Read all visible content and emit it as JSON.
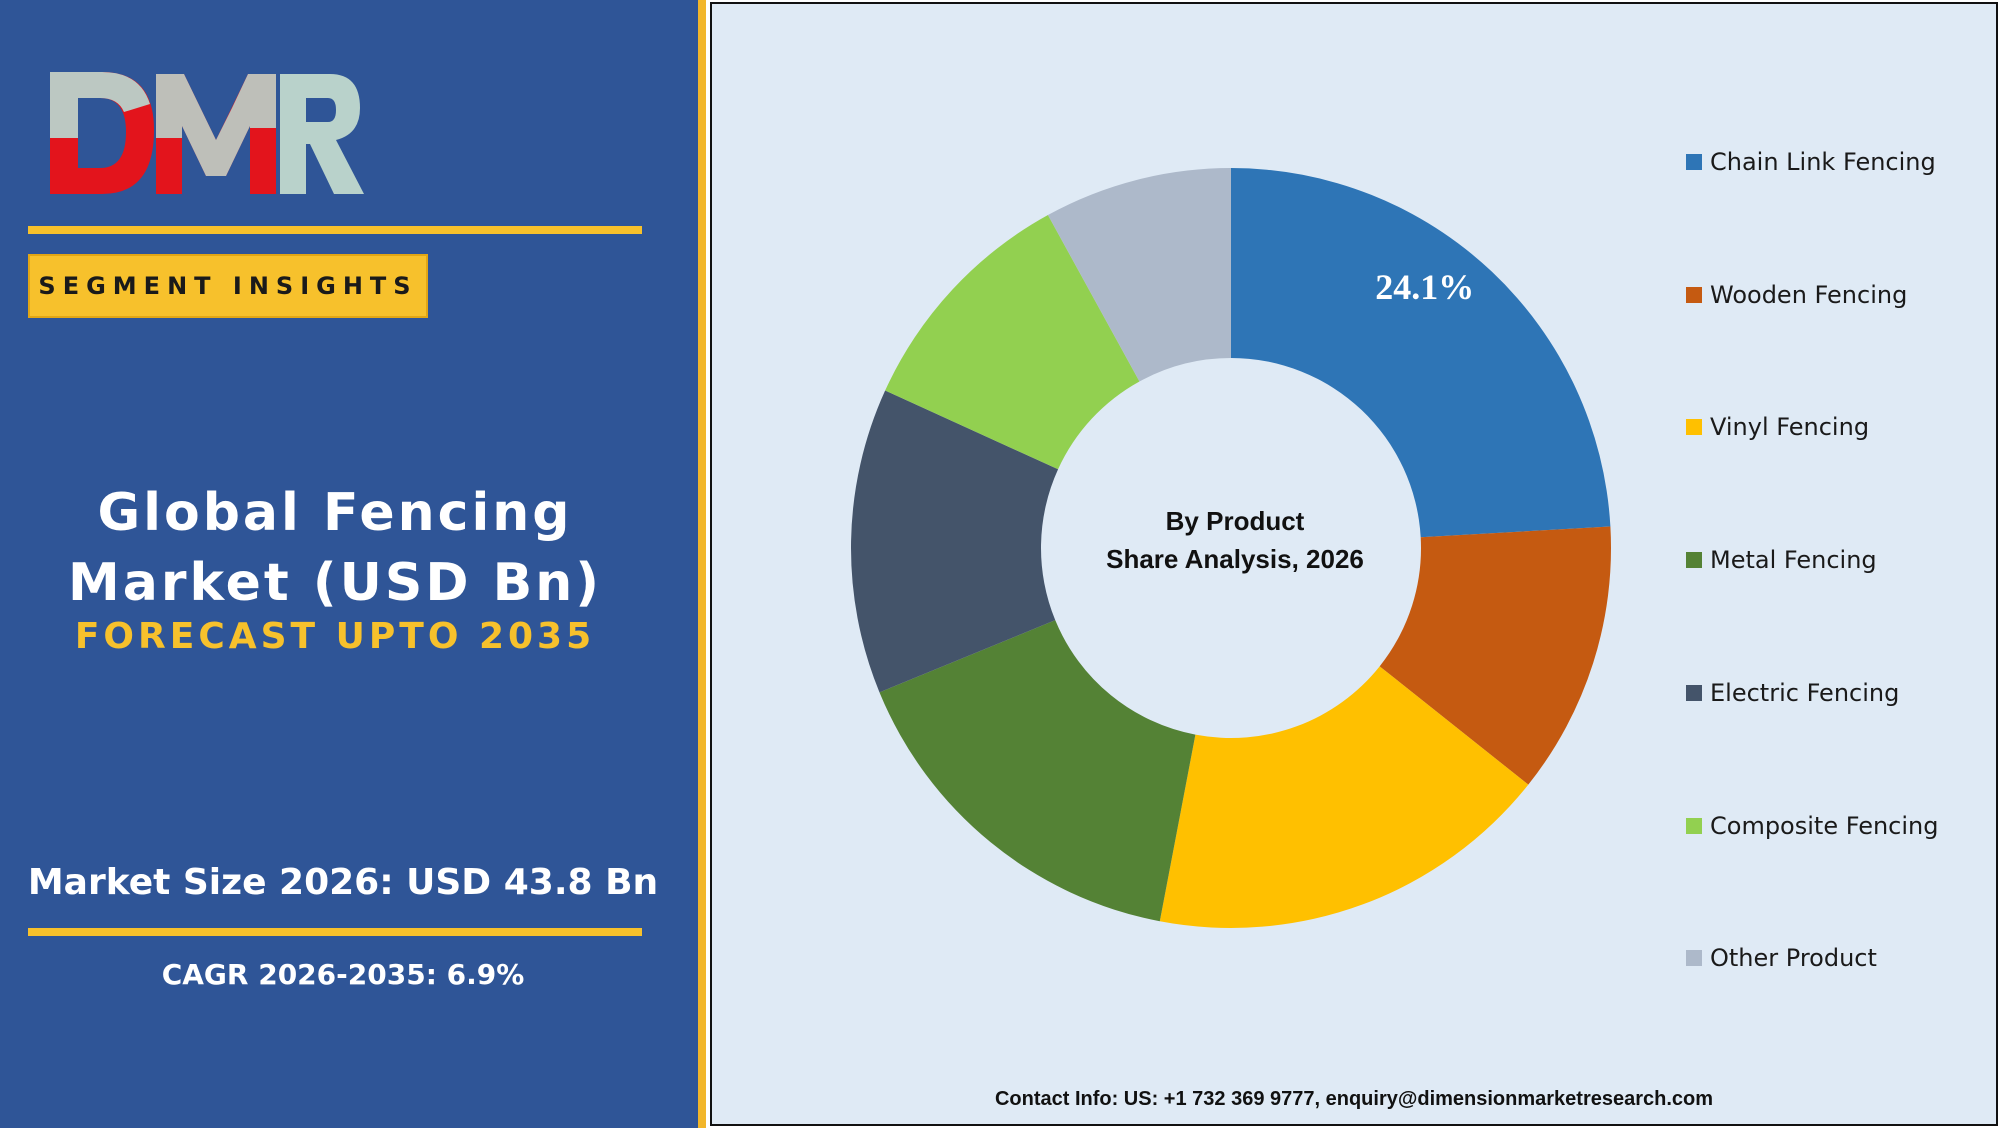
{
  "branding": {
    "logo_text": "DMR",
    "segment_badge": "SEGMENT INSIGHTS"
  },
  "report": {
    "title_line1": "Global Fencing",
    "title_line2": "Market (USD Bn)",
    "subtitle": "FORECAST UPTO 2035",
    "market_size": "Market Size 2026: USD 43.8 Bn",
    "cagr": "CAGR 2026-2035: 6.9%"
  },
  "chart_data": {
    "type": "pie",
    "style": "donut",
    "center_label_line1": "By Product",
    "center_label_line2": "Share Analysis, 2026",
    "categories": [
      "Chain Link Fencing",
      "Wooden Fencing",
      "Vinyl Fencing",
      "Metal Fencing",
      "Electric Fencing",
      "Composite Fencing",
      "Other Product"
    ],
    "values": [
      24.1,
      11.6,
      17.3,
      15.8,
      13.0,
      10.2,
      8.0
    ],
    "colors": [
      "#2e75b6",
      "#c55a11",
      "#ffc000",
      "#548235",
      "#44546a",
      "#92d050",
      "#adb9ca"
    ],
    "data_labels": [
      "24.1%",
      "",
      "",
      "",
      "",
      "",
      ""
    ],
    "legend_position": "right"
  },
  "footer": {
    "contact": "Contact Info: US: +1 732 369 9777, enquiry@dimensionmarketresearch.com"
  },
  "colors": {
    "left_panel": "#2f5597",
    "accent": "#f7c12c",
    "chart_background": "#dfeaf5"
  }
}
